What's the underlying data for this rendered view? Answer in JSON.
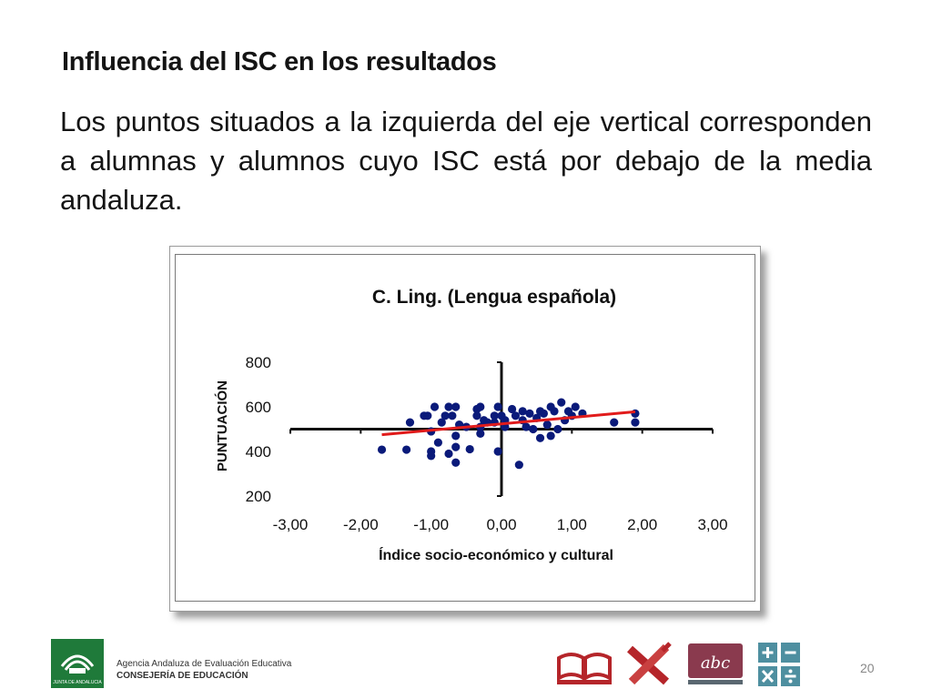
{
  "slide": {
    "title": "Influencia del ISC en los resultados",
    "body": "Los puntos situados a la izquierda del eje vertical corresponden a alumnas y alumnos cuyo ISC está por debajo de la media andaluza.",
    "page_number": "20"
  },
  "footer": {
    "logo_caption": "JUNTA DE ANDALUCIA",
    "agency": "Agencia Andaluza de Evaluación Educativa",
    "department": "CONSEJERÍA DE EDUCACIÓN",
    "icons": [
      "book-icon",
      "pencil-ruler-icon",
      "abc-board-icon",
      "calculator-icon"
    ],
    "icon_badge_text": "abc"
  },
  "chart_data": {
    "type": "scatter",
    "title": "C. Ling. (Lengua española)",
    "xlabel": "Índice socio-económico y cultural",
    "ylabel": "PUNTUACIÓN",
    "xlim": [
      -3,
      3
    ],
    "ylim": [
      200,
      800
    ],
    "x_ticks": [
      "-3,00",
      "-2,00",
      "-1,00",
      "0,00",
      "1,00",
      "2,00",
      "3,00"
    ],
    "y_ticks": [
      "200",
      "400",
      "600",
      "800"
    ],
    "x_axis_crosses_y_at": 500,
    "y_axis_crosses_x_at": 0,
    "grid": false,
    "point_color": "#0a1a7a",
    "trend_color": "#e11b1b",
    "trendline": {
      "x": [
        -1.7,
        1.9
      ],
      "y": [
        475,
        578
      ]
    },
    "points": [
      [
        -1.7,
        408
      ],
      [
        -1.35,
        408
      ],
      [
        -1.3,
        530
      ],
      [
        -1.1,
        560
      ],
      [
        -1.05,
        560
      ],
      [
        -1.0,
        490
      ],
      [
        -1.0,
        400
      ],
      [
        -1.0,
        380
      ],
      [
        -0.95,
        600
      ],
      [
        -0.9,
        440
      ],
      [
        -0.85,
        530
      ],
      [
        -0.8,
        560
      ],
      [
        -0.75,
        600
      ],
      [
        -0.75,
        390
      ],
      [
        -0.7,
        560
      ],
      [
        -0.65,
        600
      ],
      [
        -0.65,
        470
      ],
      [
        -0.65,
        420
      ],
      [
        -0.65,
        350
      ],
      [
        -0.6,
        520
      ],
      [
        -0.5,
        510
      ],
      [
        -0.45,
        410
      ],
      [
        -0.35,
        590
      ],
      [
        -0.35,
        560
      ],
      [
        -0.3,
        600
      ],
      [
        -0.3,
        510
      ],
      [
        -0.3,
        480
      ],
      [
        -0.25,
        540
      ],
      [
        -0.2,
        530
      ],
      [
        -0.1,
        560
      ],
      [
        -0.1,
        530
      ],
      [
        -0.05,
        600
      ],
      [
        -0.05,
        400
      ],
      [
        0.0,
        560
      ],
      [
        0.05,
        540
      ],
      [
        0.05,
        510
      ],
      [
        0.15,
        590
      ],
      [
        0.2,
        560
      ],
      [
        0.25,
        340
      ],
      [
        0.3,
        580
      ],
      [
        0.3,
        540
      ],
      [
        0.35,
        510
      ],
      [
        0.4,
        570
      ],
      [
        0.45,
        500
      ],
      [
        0.5,
        550
      ],
      [
        0.55,
        580
      ],
      [
        0.55,
        460
      ],
      [
        0.6,
        570
      ],
      [
        0.65,
        520
      ],
      [
        0.7,
        600
      ],
      [
        0.7,
        470
      ],
      [
        0.75,
        580
      ],
      [
        0.8,
        500
      ],
      [
        0.85,
        620
      ],
      [
        0.9,
        540
      ],
      [
        0.95,
        580
      ],
      [
        1.0,
        560
      ],
      [
        1.05,
        600
      ],
      [
        1.15,
        570
      ],
      [
        1.6,
        530
      ],
      [
        1.9,
        570
      ],
      [
        1.9,
        530
      ]
    ]
  }
}
